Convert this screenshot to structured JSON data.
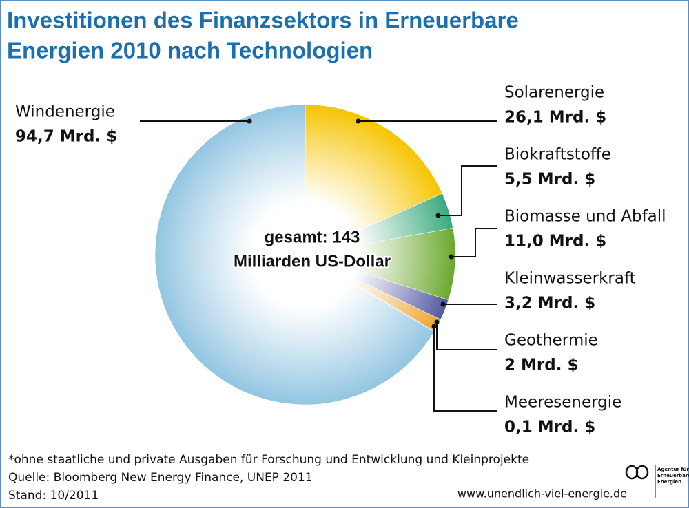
{
  "chart_data": {
    "type": "pie",
    "title": [
      "Investitionen des Finanzsektors in Erneuerbare",
      "Energien 2010 nach Technologien"
    ],
    "categories": [
      "Solarenergie",
      "Biokraftstoffe",
      "Biomasse und Abfall",
      "Kleinwasserkraft",
      "Geothermie",
      "Meeresenergie",
      "Windenergie"
    ],
    "values": [
      26.1,
      5.5,
      11.0,
      3.2,
      2,
      0.1,
      94.7
    ],
    "value_labels": [
      "26,1 Mrd. $",
      "5,5 Mrd. $",
      "11,0 Mrd. $",
      "3,2 Mrd. $",
      "2 Mrd. $",
      "0,1 Mrd. $",
      "94,7 Mrd. $"
    ],
    "colors": [
      "#f6c400",
      "#3aa97c",
      "#6aa82c",
      "#5257a3",
      "#eea22c",
      "#3b6aa0",
      "#92c5e2"
    ],
    "center_label": [
      "gesamt: 143",
      "Milliarden US-Dollar"
    ],
    "notes": [
      "*ohne staatliche und private Ausgaben für Forschung und Entwicklung und Kleinprojekte",
      "Quelle: Bloomberg New Energy Finance, UNEP 2011",
      "Stand: 10/2011"
    ],
    "website": "www.unendlich-viel-energie.de",
    "logo": [
      "Agentur für",
      "Erneuerbare",
      "Energien"
    ]
  }
}
